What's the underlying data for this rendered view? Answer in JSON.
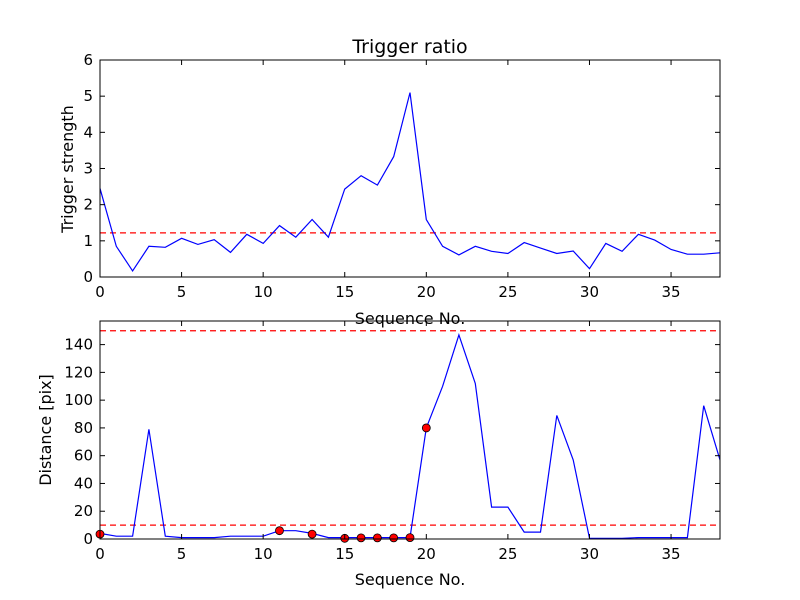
{
  "chart_data": [
    {
      "type": "line",
      "title": "Trigger ratio",
      "xlabel": "Sequence No.",
      "ylabel": "Trigger strength",
      "xlim": [
        0,
        38
      ],
      "ylim": [
        0,
        6
      ],
      "xticks": [
        0,
        5,
        10,
        15,
        20,
        25,
        30,
        35
      ],
      "yticks": [
        0,
        1,
        2,
        3,
        4,
        5,
        6
      ],
      "grid": false,
      "series": [
        {
          "style": "line",
          "color": "#0000ff",
          "x": [
            0,
            1,
            2,
            3,
            4,
            5,
            6,
            7,
            8,
            9,
            10,
            11,
            12,
            13,
            14,
            15,
            16,
            17,
            18,
            19,
            20,
            21,
            22,
            23,
            24,
            25,
            26,
            27,
            28,
            29,
            30,
            31,
            32,
            33,
            34,
            35,
            36,
            37,
            38
          ],
          "y": [
            2.45,
            0.85,
            0.17,
            0.85,
            0.82,
            1.07,
            0.9,
            1.03,
            0.68,
            1.18,
            0.93,
            1.42,
            1.1,
            1.59,
            1.1,
            2.43,
            2.8,
            2.54,
            3.33,
            5.1,
            1.59,
            0.85,
            0.61,
            0.85,
            0.71,
            0.65,
            0.95,
            0.8,
            0.65,
            0.72,
            0.23,
            0.93,
            0.71,
            1.18,
            1.02,
            0.76,
            0.63,
            0.63,
            0.67
          ]
        }
      ],
      "hlines": [
        {
          "y": 1.22,
          "color": "#ff0000",
          "style": "dashed"
        }
      ]
    },
    {
      "type": "line",
      "title": "",
      "xlabel": "Sequence No.",
      "ylabel": "Distance [pix]",
      "xlim": [
        0,
        38
      ],
      "ylim": [
        0,
        157
      ],
      "xticks": [
        0,
        5,
        10,
        15,
        20,
        25,
        30,
        35
      ],
      "yticks": [
        0,
        20,
        40,
        60,
        80,
        100,
        120,
        140
      ],
      "grid": false,
      "series": [
        {
          "style": "line",
          "color": "#0000ff",
          "x": [
            0,
            1,
            2,
            3,
            4,
            5,
            6,
            7,
            8,
            9,
            10,
            11,
            12,
            13,
            14,
            15,
            16,
            17,
            18,
            19,
            20,
            21,
            22,
            23,
            24,
            25,
            26,
            27,
            28,
            29,
            30,
            31,
            32,
            33,
            34,
            35,
            36,
            37,
            38
          ],
          "y": [
            4,
            2,
            2,
            79,
            2,
            1,
            1,
            1,
            2,
            2,
            2,
            6,
            6,
            4,
            1,
            1,
            1,
            1,
            1,
            1,
            80,
            110,
            147,
            112,
            23,
            23,
            5,
            5,
            89,
            57,
            0.5,
            0.5,
            0.5,
            1,
            1,
            1,
            1,
            96,
            57
          ]
        },
        {
          "style": "markers",
          "color": "#ff0000",
          "x": [
            0,
            11,
            13,
            15,
            16,
            17,
            18,
            19,
            20
          ],
          "y": [
            3.5,
            6,
            3.5,
            0.5,
            0.8,
            0.8,
            0.8,
            1,
            80
          ]
        }
      ],
      "hlines": [
        {
          "y": 150,
          "color": "#ff0000",
          "style": "dashed"
        },
        {
          "y": 10,
          "color": "#ff0000",
          "style": "dashed"
        }
      ]
    }
  ]
}
